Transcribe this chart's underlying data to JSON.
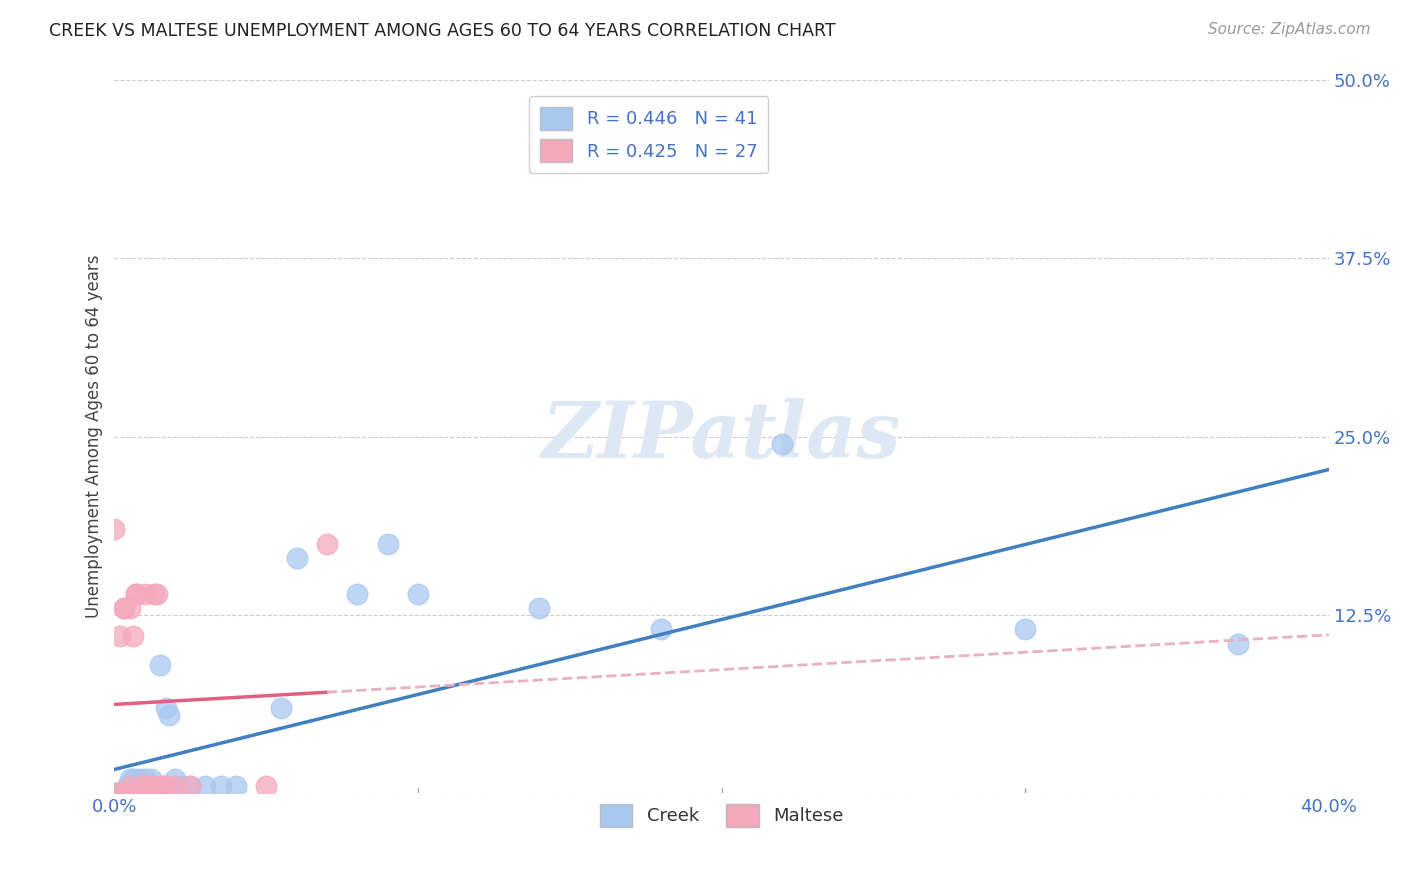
{
  "title": "CREEK VS MALTESE UNEMPLOYMENT AMONG AGES 60 TO 64 YEARS CORRELATION CHART",
  "source": "Source: ZipAtlas.com",
  "ylabel_label": "Unemployment Among Ages 60 to 64 years",
  "xlim": [
    0.0,
    0.4
  ],
  "ylim": [
    0.0,
    0.5
  ],
  "xticks": [
    0.0,
    0.4
  ],
  "xticklabels": [
    "0.0%",
    "40.0%"
  ],
  "yticks": [
    0.0,
    0.125,
    0.25,
    0.375,
    0.5
  ],
  "yticklabels": [
    "",
    "12.5%",
    "25.0%",
    "37.5%",
    "50.0%"
  ],
  "creek_R": 0.446,
  "creek_N": 41,
  "maltese_R": 0.425,
  "maltese_N": 27,
  "creek_color": "#A8C8F0",
  "maltese_color": "#F4A8BC",
  "creek_line_color": "#4080C0",
  "maltese_line_color": "#E06080",
  "maltese_dashed_color": "#E8B0C0",
  "watermark_color": "#DDE8F4",
  "background_color": "#FFFFFF",
  "grid_color": "#CCCCCC",
  "tick_color": "#4472C4",
  "creek_x": [
    0.0,
    0.001,
    0.002,
    0.003,
    0.004,
    0.004,
    0.005,
    0.005,
    0.005,
    0.006,
    0.006,
    0.007,
    0.007,
    0.008,
    0.009,
    0.01,
    0.01,
    0.011,
    0.012,
    0.013,
    0.014,
    0.015,
    0.016,
    0.017,
    0.018,
    0.02,
    0.022,
    0.025,
    0.03,
    0.035,
    0.04,
    0.055,
    0.06,
    0.08,
    0.09,
    0.1,
    0.14,
    0.18,
    0.22,
    0.3,
    0.37
  ],
  "creek_y": [
    0.0,
    0.0,
    0.0,
    0.0,
    0.0,
    0.005,
    0.0,
    0.005,
    0.01,
    0.005,
    0.01,
    0.0,
    0.005,
    0.01,
    0.005,
    0.0,
    0.01,
    0.005,
    0.01,
    0.005,
    0.005,
    0.09,
    0.005,
    0.06,
    0.055,
    0.01,
    0.005,
    0.005,
    0.005,
    0.005,
    0.005,
    0.06,
    0.165,
    0.14,
    0.175,
    0.14,
    0.13,
    0.115,
    0.245,
    0.115,
    0.105
  ],
  "maltese_x": [
    0.0,
    0.0,
    0.001,
    0.002,
    0.003,
    0.003,
    0.004,
    0.005,
    0.005,
    0.006,
    0.007,
    0.007,
    0.008,
    0.009,
    0.01,
    0.01,
    0.011,
    0.012,
    0.013,
    0.014,
    0.015,
    0.016,
    0.017,
    0.02,
    0.025,
    0.05,
    0.07
  ],
  "maltese_y": [
    0.0,
    0.185,
    0.0,
    0.11,
    0.13,
    0.13,
    0.0,
    0.005,
    0.13,
    0.11,
    0.14,
    0.14,
    0.0,
    0.005,
    0.005,
    0.14,
    0.005,
    0.005,
    0.14,
    0.14,
    0.005,
    0.005,
    0.005,
    0.005,
    0.005,
    0.005,
    0.175
  ]
}
